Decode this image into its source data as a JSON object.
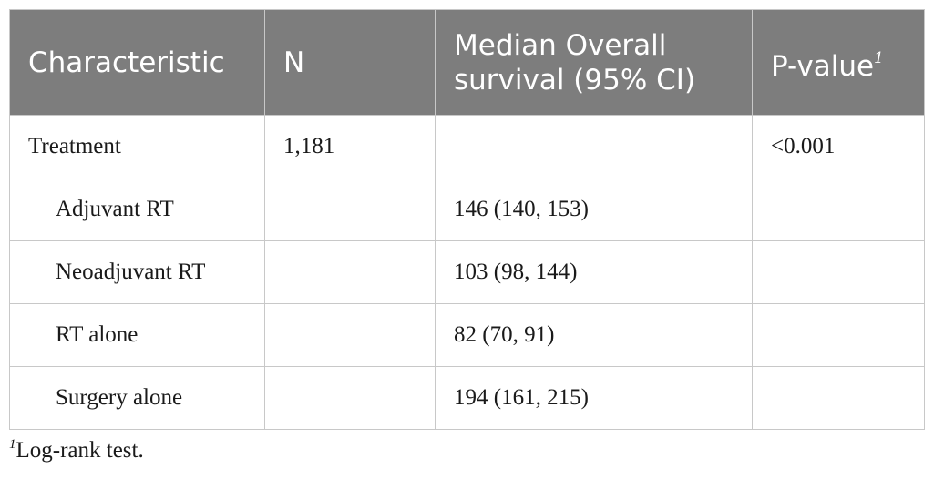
{
  "table": {
    "headers": [
      "Characteristic",
      "N",
      "Median Overall survival (95% CI)",
      "P-value"
    ],
    "pvalue_footnote_marker": "1",
    "rows": [
      {
        "characteristic": "Treatment",
        "n": "1,181",
        "median": "",
        "pvalue": "<0.001"
      },
      {
        "characteristic": "Adjuvant RT",
        "n": "",
        "median": "146 (140, 153)",
        "pvalue": ""
      },
      {
        "characteristic": "Neoadjuvant RT",
        "n": "",
        "median": "103 (98, 144)",
        "pvalue": ""
      },
      {
        "characteristic": "RT alone",
        "n": "",
        "median": "82 (70, 91)",
        "pvalue": ""
      },
      {
        "characteristic": "Surgery alone",
        "n": "",
        "median": "194 (161, 215)",
        "pvalue": ""
      }
    ]
  },
  "footnote": {
    "marker": "1",
    "text": "Log-rank test."
  }
}
